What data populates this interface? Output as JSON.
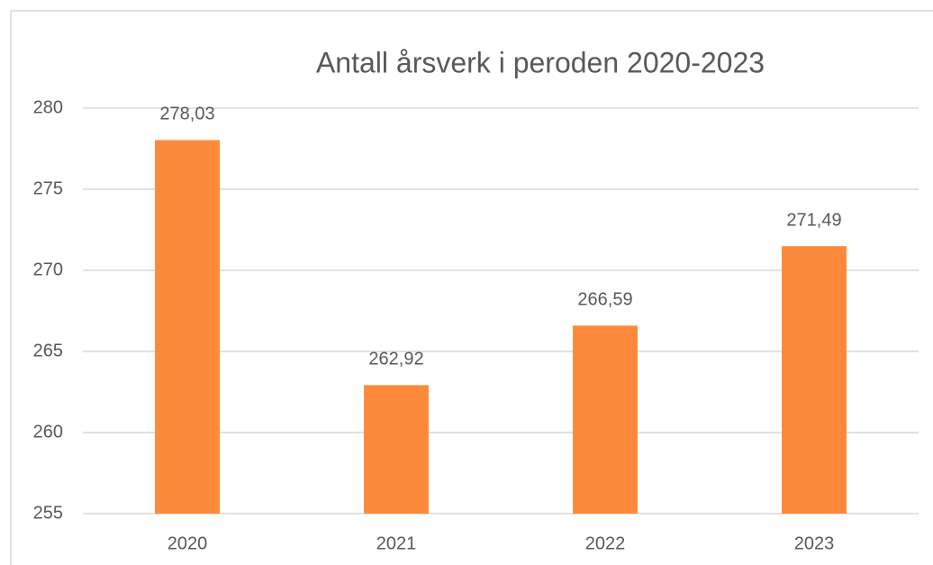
{
  "chart_data": {
    "type": "bar",
    "title": "Antall årsverk i peroden 2020-2023",
    "categories": [
      "2020",
      "2021",
      "2022",
      "2023"
    ],
    "values": [
      278.03,
      262.92,
      266.59,
      271.49
    ],
    "value_labels": [
      "278,03",
      "262,92",
      "266,59",
      "271,49"
    ],
    "color": "#fd8a3b",
    "ylim": [
      255,
      280
    ],
    "yticks": [
      255,
      260,
      265,
      270,
      275,
      280
    ],
    "grid": true
  }
}
